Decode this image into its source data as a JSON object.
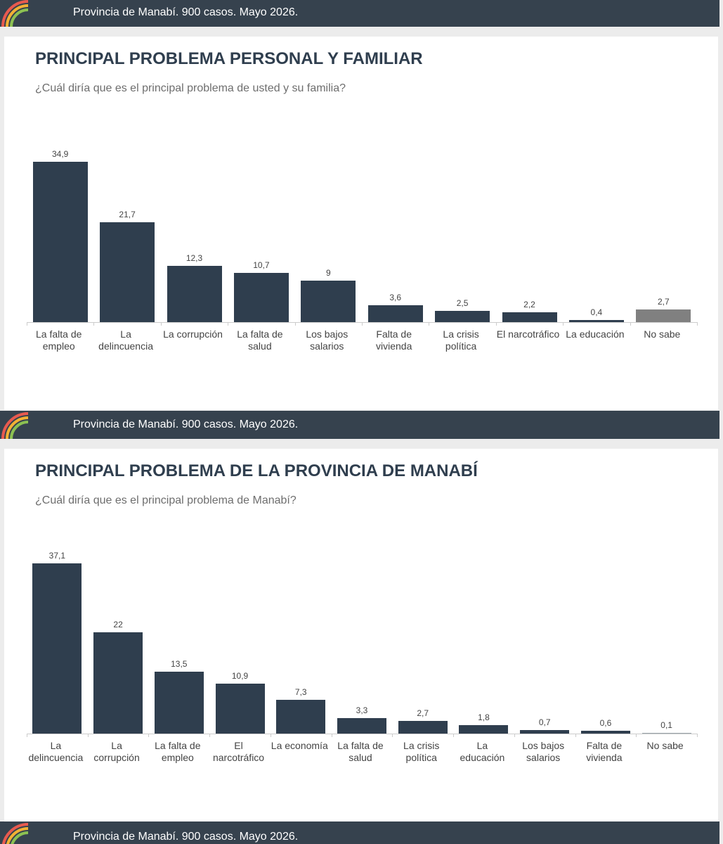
{
  "banners": [
    "Provincia de Manabí. 900 casos. Mayo 2026.",
    "Provincia de Manabí. 900 casos. Mayo 2026.",
    "Provincia de Manabí. 900 casos. Mayo 2026."
  ],
  "chart_data": [
    {
      "type": "bar",
      "title": "PRINCIPAL PROBLEMA PERSONAL Y FAMILIAR",
      "subtitle": "¿Cuál diría que es el principal problema de usted y su familia?",
      "categories": [
        "La falta de empleo",
        "La delincuencia",
        "La corrupción",
        "La falta de salud",
        "Los bajos salarios",
        "Falta de vivienda",
        "La crisis política",
        "El narcotráfico",
        "La educación",
        "No sabe"
      ],
      "values": [
        34.9,
        21.7,
        12.3,
        10.7,
        9,
        3.6,
        2.5,
        2.2,
        0.4,
        2.7
      ],
      "value_labels": [
        "34,9",
        "21,7",
        "12,3",
        "10,7",
        "9",
        "3,6",
        "2,5",
        "2,2",
        "0,4",
        "2,7"
      ],
      "colors": [
        "#2f3e4e",
        "#2f3e4e",
        "#2f3e4e",
        "#2f3e4e",
        "#2f3e4e",
        "#2f3e4e",
        "#2f3e4e",
        "#2f3e4e",
        "#2f3e4e",
        "#808080"
      ]
    },
    {
      "type": "bar",
      "title": "PRINCIPAL PROBLEMA DE LA PROVINCIA DE MANABÍ",
      "subtitle": "¿Cuál diría que es el principal problema de Manabí?",
      "categories": [
        "La delincuencia",
        "La corrupción",
        "La falta de empleo",
        "El narcotráfico",
        "La economía",
        "La falta de salud",
        "La crisis política",
        "La educación",
        "Los bajos salarios",
        "Falta de vivienda",
        "No sabe"
      ],
      "values": [
        37.1,
        22,
        13.5,
        10.9,
        7.3,
        3.3,
        2.7,
        1.8,
        0.7,
        0.6,
        0.1
      ],
      "value_labels": [
        "37,1",
        "22",
        "13,5",
        "10,9",
        "7,3",
        "3,3",
        "2,7",
        "1,8",
        "0,7",
        "0,6",
        "0,1"
      ],
      "colors": [
        "#2f3e4e",
        "#2f3e4e",
        "#2f3e4e",
        "#2f3e4e",
        "#2f3e4e",
        "#2f3e4e",
        "#2f3e4e",
        "#2f3e4e",
        "#2f3e4e",
        "#2f3e4e",
        "#9aa3ab"
      ]
    }
  ]
}
